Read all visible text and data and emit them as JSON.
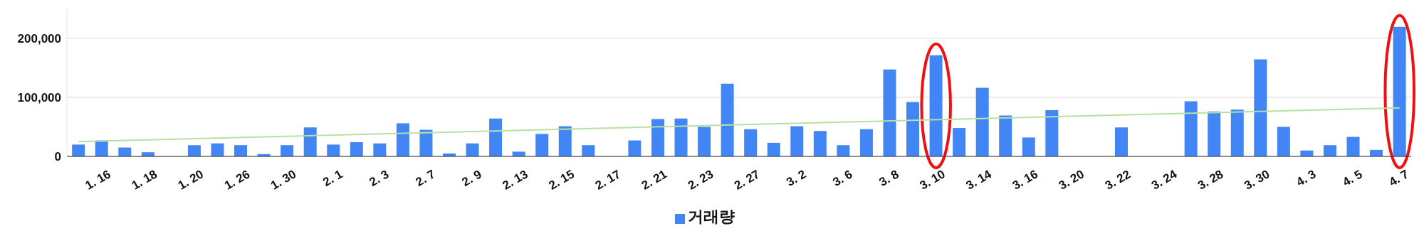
{
  "chart_data": {
    "type": "bar",
    "categories": [
      null,
      "1. 16",
      null,
      "1. 18",
      null,
      "1. 20",
      null,
      "1. 26",
      null,
      "1. 30",
      null,
      "2. 1",
      null,
      "2. 3",
      null,
      "2. 7",
      null,
      "2. 9",
      null,
      "2. 13",
      null,
      "2. 15",
      null,
      "2. 17",
      null,
      "2. 21",
      null,
      "2. 23",
      null,
      "2. 27",
      null,
      "3. 2",
      null,
      "3. 6",
      null,
      "3. 8",
      null,
      "3. 10",
      null,
      "3. 14",
      null,
      "3. 16",
      null,
      "3. 20",
      null,
      "3. 22",
      null,
      "3. 24",
      null,
      "3. 28",
      null,
      "3. 30",
      null,
      "4. 3",
      null,
      "4. 5",
      null,
      "4. 7"
    ],
    "series": [
      {
        "name": "거래량",
        "color": "#4285f4",
        "values": [
          20000,
          27000,
          15000,
          7000,
          0,
          19000,
          22000,
          19000,
          4000,
          19000,
          49000,
          20000,
          24000,
          22000,
          56000,
          45000,
          5000,
          22000,
          64000,
          8000,
          38000,
          51000,
          19000,
          0,
          27000,
          63000,
          64000,
          50000,
          123000,
          46000,
          23000,
          51000,
          43000,
          19000,
          46000,
          147000,
          92000,
          171000,
          48000,
          116000,
          69000,
          32000,
          78000,
          0,
          0,
          49000,
          0,
          0,
          93000,
          76000,
          79000,
          164000,
          50000,
          10000,
          19000,
          33000,
          11000,
          219000
        ]
      },
      {
        "type": "line",
        "color": "#b7e1a1",
        "values": [
          25000,
          null,
          null,
          null,
          null,
          null,
          null,
          null,
          null,
          null,
          null,
          null,
          null,
          null,
          null,
          null,
          null,
          null,
          null,
          null,
          null,
          null,
          null,
          null,
          null,
          null,
          null,
          null,
          null,
          null,
          null,
          null,
          null,
          null,
          null,
          null,
          null,
          null,
          null,
          null,
          null,
          null,
          null,
          null,
          null,
          null,
          null,
          null,
          null,
          null,
          null,
          null,
          null,
          null,
          null,
          null,
          null,
          82000
        ]
      }
    ],
    "ylim": [
      0,
      250000
    ],
    "yticks": [
      0,
      {
        "value": 100000,
        "label": "100,000"
      },
      {
        "value": 200000,
        "label": "200,000"
      }
    ],
    "grid": "y",
    "legend": "bottom"
  }
}
